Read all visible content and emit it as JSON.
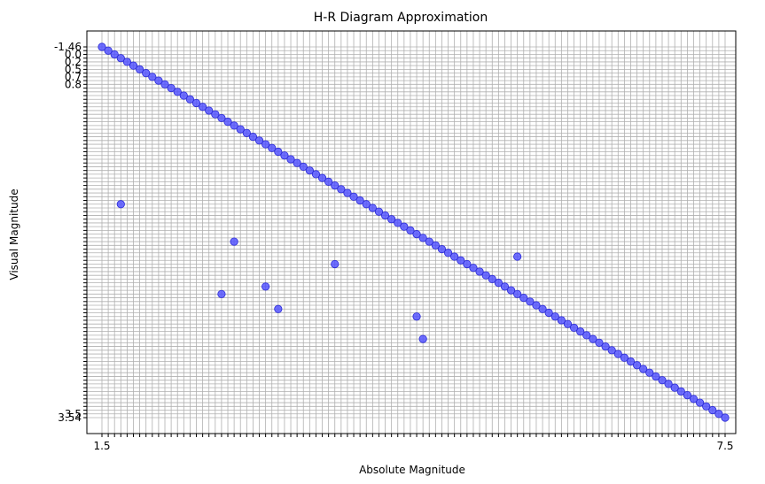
{
  "chart_data": {
    "type": "scatter",
    "title": "H-R Diagram Approximation",
    "xlabel": "Absolute Magnitude",
    "ylabel": "Visual Magnitude",
    "grid": true,
    "marker_color": "#4b4bff",
    "marker_edge": "#2a2ad6",
    "x_ticks_visible_start": "1.5",
    "x_ticks_visible_end": "7.5",
    "y_ticks_top": [
      "-1.46",
      "0.0",
      "0.2",
      "0.5",
      "0.7",
      "0.8"
    ],
    "y_ticks_bottom": [
      "3.5",
      "3.54"
    ],
    "x_categories": 100,
    "points": [
      {
        "x": 0,
        "y": 0
      },
      {
        "x": 1,
        "y": 1
      },
      {
        "x": 2,
        "y": 2
      },
      {
        "x": 3,
        "y": 3
      },
      {
        "x": 4,
        "y": 4
      },
      {
        "x": 5,
        "y": 5
      },
      {
        "x": 6,
        "y": 6
      },
      {
        "x": 7,
        "y": 7
      },
      {
        "x": 8,
        "y": 8
      },
      {
        "x": 9,
        "y": 9
      },
      {
        "x": 10,
        "y": 10
      },
      {
        "x": 11,
        "y": 11
      },
      {
        "x": 12,
        "y": 12
      },
      {
        "x": 13,
        "y": 13
      },
      {
        "x": 14,
        "y": 14
      },
      {
        "x": 15,
        "y": 15
      },
      {
        "x": 16,
        "y": 16
      },
      {
        "x": 17,
        "y": 17
      },
      {
        "x": 18,
        "y": 18
      },
      {
        "x": 19,
        "y": 19
      },
      {
        "x": 20,
        "y": 20
      },
      {
        "x": 21,
        "y": 21
      },
      {
        "x": 22,
        "y": 22
      },
      {
        "x": 23,
        "y": 23
      },
      {
        "x": 24,
        "y": 24
      },
      {
        "x": 25,
        "y": 25
      },
      {
        "x": 26,
        "y": 26
      },
      {
        "x": 27,
        "y": 27
      },
      {
        "x": 28,
        "y": 28
      },
      {
        "x": 29,
        "y": 29
      },
      {
        "x": 30,
        "y": 30
      },
      {
        "x": 31,
        "y": 31
      },
      {
        "x": 32,
        "y": 32
      },
      {
        "x": 33,
        "y": 33
      },
      {
        "x": 34,
        "y": 34
      },
      {
        "x": 35,
        "y": 35
      },
      {
        "x": 36,
        "y": 36
      },
      {
        "x": 37,
        "y": 37
      },
      {
        "x": 38,
        "y": 38
      },
      {
        "x": 39,
        "y": 39
      },
      {
        "x": 40,
        "y": 40
      },
      {
        "x": 41,
        "y": 41
      },
      {
        "x": 42,
        "y": 42
      },
      {
        "x": 43,
        "y": 43
      },
      {
        "x": 44,
        "y": 44
      },
      {
        "x": 45,
        "y": 45
      },
      {
        "x": 46,
        "y": 46
      },
      {
        "x": 47,
        "y": 47
      },
      {
        "x": 48,
        "y": 48
      },
      {
        "x": 49,
        "y": 49
      },
      {
        "x": 50,
        "y": 50
      },
      {
        "x": 51,
        "y": 51
      },
      {
        "x": 52,
        "y": 52
      },
      {
        "x": 53,
        "y": 53
      },
      {
        "x": 54,
        "y": 54
      },
      {
        "x": 55,
        "y": 55
      },
      {
        "x": 56,
        "y": 56
      },
      {
        "x": 57,
        "y": 57
      },
      {
        "x": 58,
        "y": 58
      },
      {
        "x": 59,
        "y": 59
      },
      {
        "x": 60,
        "y": 60
      },
      {
        "x": 61,
        "y": 61
      },
      {
        "x": 62,
        "y": 62
      },
      {
        "x": 63,
        "y": 63
      },
      {
        "x": 64,
        "y": 64
      },
      {
        "x": 65,
        "y": 65
      },
      {
        "x": 66,
        "y": 66
      },
      {
        "x": 67,
        "y": 67
      },
      {
        "x": 68,
        "y": 68
      },
      {
        "x": 69,
        "y": 69
      },
      {
        "x": 70,
        "y": 70
      },
      {
        "x": 71,
        "y": 71
      },
      {
        "x": 72,
        "y": 72
      },
      {
        "x": 73,
        "y": 73
      },
      {
        "x": 74,
        "y": 74
      },
      {
        "x": 75,
        "y": 75
      },
      {
        "x": 76,
        "y": 76
      },
      {
        "x": 77,
        "y": 77
      },
      {
        "x": 78,
        "y": 78
      },
      {
        "x": 79,
        "y": 79
      },
      {
        "x": 80,
        "y": 80
      },
      {
        "x": 81,
        "y": 81
      },
      {
        "x": 82,
        "y": 82
      },
      {
        "x": 83,
        "y": 83
      },
      {
        "x": 84,
        "y": 84
      },
      {
        "x": 85,
        "y": 85
      },
      {
        "x": 86,
        "y": 86
      },
      {
        "x": 87,
        "y": 87
      },
      {
        "x": 88,
        "y": 88
      },
      {
        "x": 89,
        "y": 89
      },
      {
        "x": 90,
        "y": 90
      },
      {
        "x": 91,
        "y": 91
      },
      {
        "x": 92,
        "y": 92
      },
      {
        "x": 93,
        "y": 93
      },
      {
        "x": 94,
        "y": 94
      },
      {
        "x": 95,
        "y": 95
      },
      {
        "x": 96,
        "y": 96
      },
      {
        "x": 97,
        "y": 97
      },
      {
        "x": 98,
        "y": 98
      },
      {
        "x": 99,
        "y": 99
      },
      {
        "x": 3,
        "y": 42
      },
      {
        "x": 21,
        "y": 52
      },
      {
        "x": 37,
        "y": 58
      },
      {
        "x": 19,
        "y": 66
      },
      {
        "x": 26,
        "y": 64
      },
      {
        "x": 28,
        "y": 70
      },
      {
        "x": 50,
        "y": 72
      },
      {
        "x": 51,
        "y": 78
      },
      {
        "x": 66,
        "y": 56
      }
    ]
  }
}
